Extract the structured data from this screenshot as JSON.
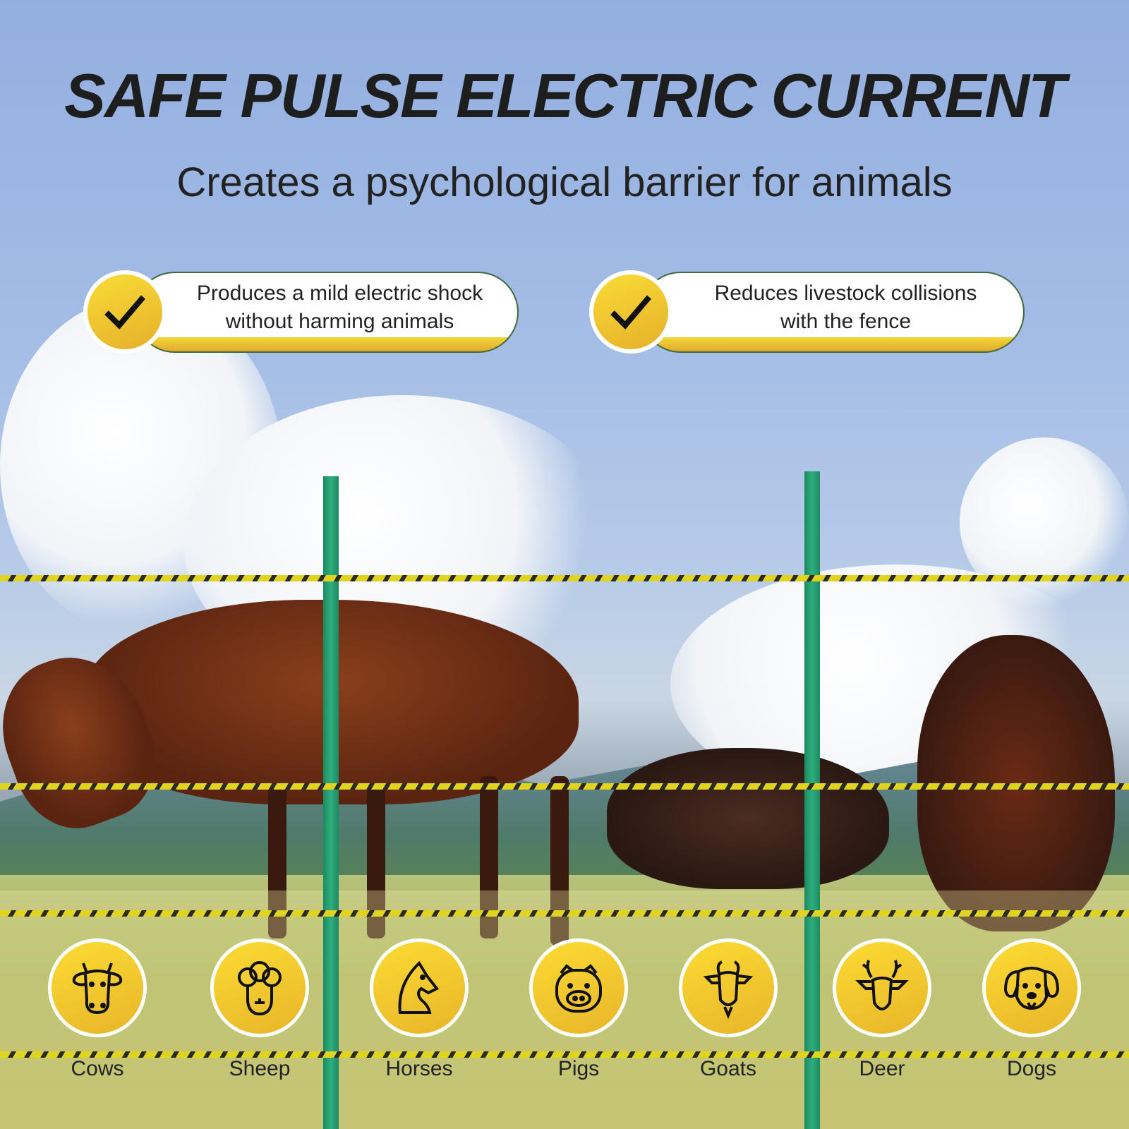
{
  "headline": "SAFE PULSE ELECTRIC CURRENT",
  "subheadline": "Creates a psychological barrier for animals",
  "features": [
    {
      "line1": "Produces a mild electric shock",
      "line2": "without harming animals",
      "icon": "checkmark-icon"
    },
    {
      "line1": "Reduces livestock collisions",
      "line2": "with the fence",
      "icon": "checkmark-icon"
    }
  ],
  "animals": [
    {
      "label": "Cows",
      "icon": "cow-icon"
    },
    {
      "label": "Sheep",
      "icon": "sheep-icon"
    },
    {
      "label": "Horses",
      "icon": "horse-icon"
    },
    {
      "label": "Pigs",
      "icon": "pig-icon"
    },
    {
      "label": "Goats",
      "icon": "goat-icon"
    },
    {
      "label": "Deer",
      "icon": "deer-icon"
    },
    {
      "label": "Dogs",
      "icon": "dog-icon"
    }
  ],
  "colors": {
    "accent_yellow": "#f5cf30",
    "post_green": "#2fae7e",
    "text": "#1e1e1e"
  }
}
